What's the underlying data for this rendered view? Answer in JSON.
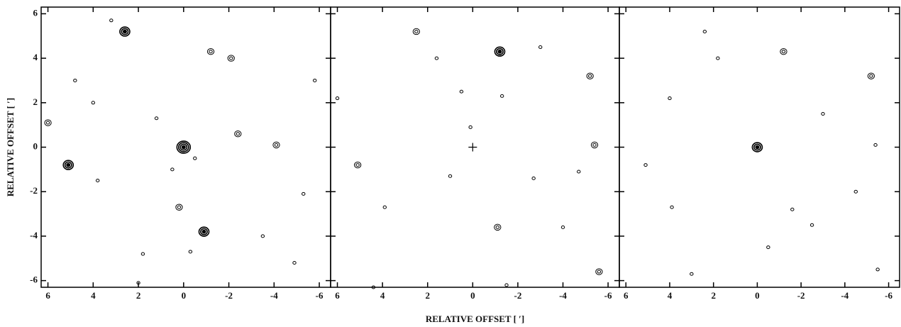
{
  "chart_data": [
    {
      "type": "contour",
      "ylabel": "RELATIVE OFFSET [ ′]",
      "show_ytick_labels": true,
      "xlim": [
        6.3,
        -6.5
      ],
      "ylim": [
        -6.3,
        6.3
      ],
      "xticks": [
        6,
        4,
        2,
        0,
        -2,
        -4,
        -6
      ],
      "yticks": [
        6,
        4,
        2,
        0,
        -2,
        -4,
        -6
      ],
      "x": [
        0,
        2.6,
        5.1,
        -0.9,
        6.0,
        -1.2,
        0.2,
        -4.1,
        -2.4,
        -2.1,
        3.8,
        1.2,
        -0.3,
        4.8,
        -5.3,
        2.0,
        -4.9,
        3.2,
        -0.5,
        0.5,
        -5.8,
        4.0,
        -3.5,
        1.8
      ],
      "y": [
        0,
        5.2,
        -0.8,
        -3.8,
        1.1,
        4.3,
        -2.7,
        0.1,
        0.6,
        4.0,
        -1.5,
        1.3,
        -4.7,
        3.0,
        -2.1,
        -6.1,
        -5.2,
        5.7,
        -0.5,
        -1.0,
        3.0,
        2.0,
        -4.0,
        -4.8
      ],
      "values": [
        4,
        3,
        3,
        3,
        2,
        2,
        2,
        2,
        2,
        2,
        1,
        1,
        1,
        1,
        1,
        1,
        1,
        1,
        1,
        1,
        1,
        1,
        1,
        1
      ]
    },
    {
      "type": "contour",
      "xlabel": "RELATIVE OFFSET [ ′]",
      "show_ytick_labels": false,
      "xlim": [
        6.3,
        -6.5
      ],
      "ylim": [
        -6.3,
        6.3
      ],
      "xticks": [
        6,
        4,
        2,
        0,
        -2,
        -4,
        -6
      ],
      "yticks": [
        6,
        4,
        2,
        0,
        -2,
        -4,
        -6
      ],
      "x": [
        -1.2,
        2.5,
        5.1,
        -1.1,
        -5.4,
        -5.2,
        0.1,
        -1.3,
        3.9,
        -5.6,
        -1.5,
        6.0,
        -4.0,
        1.6,
        -3.0,
        -2.7,
        1.0,
        4.4,
        -4.7,
        0.5
      ],
      "y": [
        4.3,
        5.2,
        -0.8,
        -3.6,
        0.1,
        3.2,
        0.9,
        2.3,
        -2.7,
        -5.6,
        -6.2,
        2.2,
        -3.6,
        4.0,
        4.5,
        -1.4,
        -1.3,
        -6.3,
        -1.1,
        2.5
      ],
      "values": [
        3,
        2,
        2,
        2,
        2,
        2,
        1,
        1,
        1,
        2,
        1,
        1,
        1,
        1,
        1,
        1,
        1,
        1,
        1,
        1
      ]
    },
    {
      "type": "contour",
      "show_ytick_labels": false,
      "xlim": [
        6.3,
        -6.5
      ],
      "ylim": [
        -6.3,
        6.3
      ],
      "xticks": [
        6,
        4,
        2,
        0,
        -2,
        -4,
        -6
      ],
      "yticks": [
        6,
        4,
        2,
        0,
        -2,
        -4,
        -6
      ],
      "x": [
        0,
        -1.2,
        5.1,
        -5.2,
        -5.4,
        -5.5,
        3.9,
        -1.6,
        1.8,
        -0.5,
        2.4,
        -2.5,
        4.0,
        -3.0,
        3.0,
        -4.5
      ],
      "y": [
        0,
        4.3,
        -0.8,
        3.2,
        0.1,
        -5.5,
        -2.7,
        -2.8,
        4.0,
        -4.5,
        5.2,
        -3.5,
        2.2,
        1.5,
        -5.7,
        -2.0
      ],
      "values": [
        3,
        2,
        1,
        2,
        1,
        1,
        1,
        1,
        1,
        1,
        1,
        1,
        1,
        1,
        1,
        1
      ]
    }
  ]
}
